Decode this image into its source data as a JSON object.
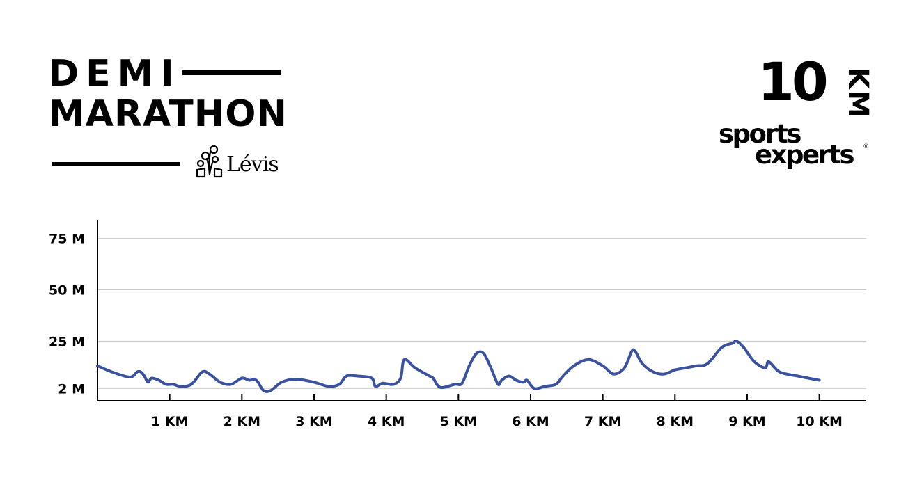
{
  "branding": {
    "title_line1": "DEMI",
    "title_line2": "MARATHON",
    "city": "Lévis",
    "distance_number": "10",
    "distance_unit": "KM",
    "sponsor_line1": "sports",
    "sponsor_line2": "experts",
    "sponsor_mark": "®"
  },
  "colors": {
    "line": "#3a51a0",
    "grid": "#c8c8c8",
    "axis": "#000000"
  },
  "chart_data": {
    "type": "line",
    "title": "",
    "xlabel": "",
    "ylabel": "",
    "xlim": [
      0,
      10.65
    ],
    "ylim": [
      -4,
      84
    ],
    "grid": true,
    "yticks": [
      {
        "value": 75,
        "label": "75 M"
      },
      {
        "value": 50,
        "label": "50 M"
      },
      {
        "value": 25,
        "label": "25 M"
      },
      {
        "value": 2,
        "label": "2 M"
      }
    ],
    "xticks": [
      {
        "value": 1,
        "label": "1 KM"
      },
      {
        "value": 2,
        "label": "2 KM"
      },
      {
        "value": 3,
        "label": "3 KM"
      },
      {
        "value": 4,
        "label": "4 KM"
      },
      {
        "value": 5,
        "label": "5 KM"
      },
      {
        "value": 6,
        "label": "6 KM"
      },
      {
        "value": 7,
        "label": "7 KM"
      },
      {
        "value": 8,
        "label": "8 KM"
      },
      {
        "value": 9,
        "label": "9 KM"
      },
      {
        "value": 10,
        "label": "10 KM"
      }
    ],
    "series": [
      {
        "x": [
          0,
          0.2,
          0.45,
          0.55,
          0.6,
          0.65,
          0.7,
          0.75,
          0.85,
          0.95,
          1.05,
          1.15,
          1.3,
          1.45,
          1.55,
          1.7,
          1.85,
          2.0,
          2.1,
          2.2,
          2.3,
          2.4,
          2.55,
          2.75,
          3.0,
          3.2,
          3.35,
          3.45,
          3.6,
          3.8,
          3.85,
          3.95,
          4.1,
          4.2,
          4.25,
          4.4,
          4.6,
          4.65,
          4.75,
          4.95,
          5.05,
          5.15,
          5.25,
          5.35,
          5.45,
          5.55,
          5.6,
          5.7,
          5.8,
          5.9,
          5.95,
          6.05,
          6.2,
          6.35,
          6.45,
          6.6,
          6.8,
          7.0,
          7.15,
          7.3,
          7.4,
          7.45,
          7.55,
          7.7,
          7.85,
          8.0,
          8.15,
          8.3,
          8.45,
          8.65,
          8.8,
          8.85,
          8.95,
          9.1,
          9.25,
          9.3,
          9.45,
          9.7,
          10.0
        ],
        "y": [
          13,
          10,
          7.5,
          10,
          10,
          8,
          5,
          7,
          6,
          4,
          4,
          3,
          4,
          10,
          9,
          5,
          4,
          7,
          6,
          6,
          1,
          1,
          5,
          6.5,
          5,
          3,
          4,
          8,
          8,
          7,
          3,
          4.5,
          4,
          7,
          16,
          12,
          8,
          7,
          2.5,
          4,
          4.5,
          13,
          19,
          19,
          12,
          4,
          6,
          8,
          6,
          5,
          6,
          2,
          3,
          4,
          8,
          13,
          16,
          13,
          9,
          12,
          20,
          20,
          14,
          10,
          9,
          11,
          12,
          13,
          14,
          22,
          24,
          25,
          22,
          15,
          12,
          15,
          10,
          8,
          6
        ]
      }
    ]
  }
}
